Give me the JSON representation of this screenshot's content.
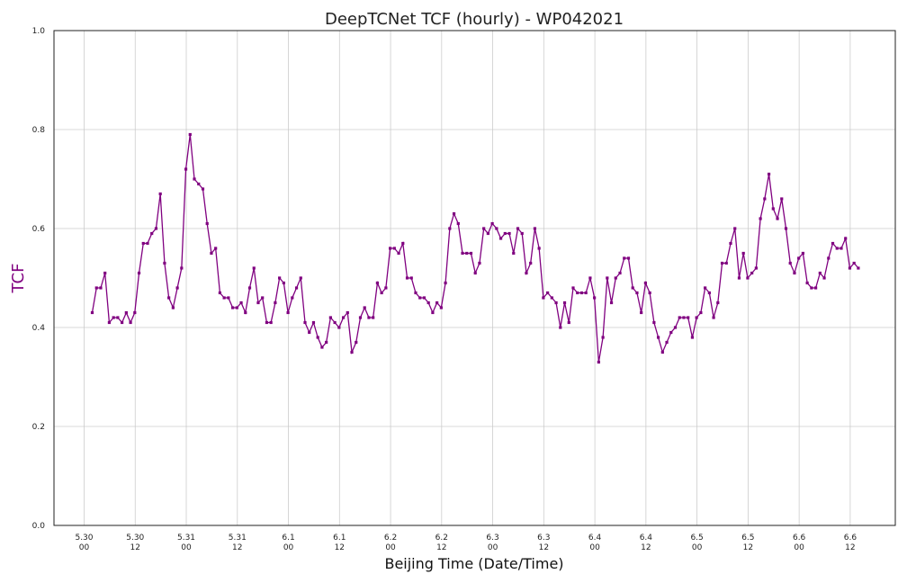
{
  "chart_data": {
    "type": "line",
    "title": "DeepTCNet TCF (hourly) - WP042021",
    "xlabel": "Beijing Time (Date/Time)",
    "ylabel": "TCF",
    "ylim": [
      0,
      1
    ],
    "yticks": [
      "0.0",
      "0.2",
      "0.4",
      "0.6",
      "0.8",
      "1.0"
    ],
    "grid": true,
    "xticks": [
      {
        "date": "5.30",
        "time": "00"
      },
      {
        "date": "5.30",
        "time": "12"
      },
      {
        "date": "5.31",
        "time": "00"
      },
      {
        "date": "5.31",
        "time": "12"
      },
      {
        "date": "6.1",
        "time": "00"
      },
      {
        "date": "6.1",
        "time": "12"
      },
      {
        "date": "6.2",
        "time": "00"
      },
      {
        "date": "6.2",
        "time": "12"
      },
      {
        "date": "6.3",
        "time": "00"
      },
      {
        "date": "6.3",
        "time": "12"
      },
      {
        "date": "6.4",
        "time": "00"
      },
      {
        "date": "6.4",
        "time": "12"
      },
      {
        "date": "6.5",
        "time": "00"
      },
      {
        "date": "6.5",
        "time": "12"
      },
      {
        "date": "6.6",
        "time": "00"
      },
      {
        "date": "6.6",
        "time": "12"
      }
    ],
    "line_color": "#800080",
    "series": [
      {
        "values": [
          0.43,
          0.48,
          0.48,
          0.51,
          0.41,
          0.42,
          0.42,
          0.41,
          0.43,
          0.41,
          0.43,
          0.51,
          0.57,
          0.57,
          0.59,
          0.6,
          0.67,
          0.53,
          0.46,
          0.44,
          0.48,
          0.52,
          0.72,
          0.79,
          0.7,
          0.69,
          0.68,
          0.61,
          0.55,
          0.56,
          0.47,
          0.46,
          0.46,
          0.44,
          0.44,
          0.45,
          0.43,
          0.48,
          0.52,
          0.45,
          0.46,
          0.41,
          0.41,
          0.45,
          0.5,
          0.49,
          0.43,
          0.46,
          0.48,
          0.5,
          0.41,
          0.39,
          0.41,
          0.38,
          0.36,
          0.37,
          0.42,
          0.41,
          0.4,
          0.42,
          0.43,
          0.35,
          0.37,
          0.42,
          0.44,
          0.42,
          0.42,
          0.49,
          0.47,
          0.48,
          0.56,
          0.56,
          0.55,
          0.57,
          0.5,
          0.5,
          0.47,
          0.46,
          0.46,
          0.45,
          0.43,
          0.45,
          0.44,
          0.49,
          0.6,
          0.63,
          0.61,
          0.55,
          0.55,
          0.55,
          0.51,
          0.53,
          0.6,
          0.59,
          0.61,
          0.6,
          0.58,
          0.59,
          0.59,
          0.55,
          0.6,
          0.59,
          0.51,
          0.53,
          0.6,
          0.56,
          0.46,
          0.47,
          0.46,
          0.45,
          0.4,
          0.45,
          0.41,
          0.48,
          0.47,
          0.47,
          0.47,
          0.5,
          0.46,
          0.33,
          0.38,
          0.5,
          0.45,
          0.5,
          0.51,
          0.54,
          0.54,
          0.48,
          0.47,
          0.43,
          0.49,
          0.47,
          0.41,
          0.38,
          0.35,
          0.37,
          0.39,
          0.4,
          0.42,
          0.42,
          0.42,
          0.38,
          0.42,
          0.43,
          0.48,
          0.47,
          0.42,
          0.45,
          0.53,
          0.53,
          0.57,
          0.6,
          0.5,
          0.55,
          0.5,
          0.51,
          0.52,
          0.62,
          0.66,
          0.71,
          0.64,
          0.62,
          0.66,
          0.6,
          0.53,
          0.51,
          0.54,
          0.55,
          0.49,
          0.48,
          0.48,
          0.51,
          0.5,
          0.54,
          0.57,
          0.56,
          0.56,
          0.58,
          0.52,
          0.53,
          0.52
        ]
      }
    ]
  }
}
